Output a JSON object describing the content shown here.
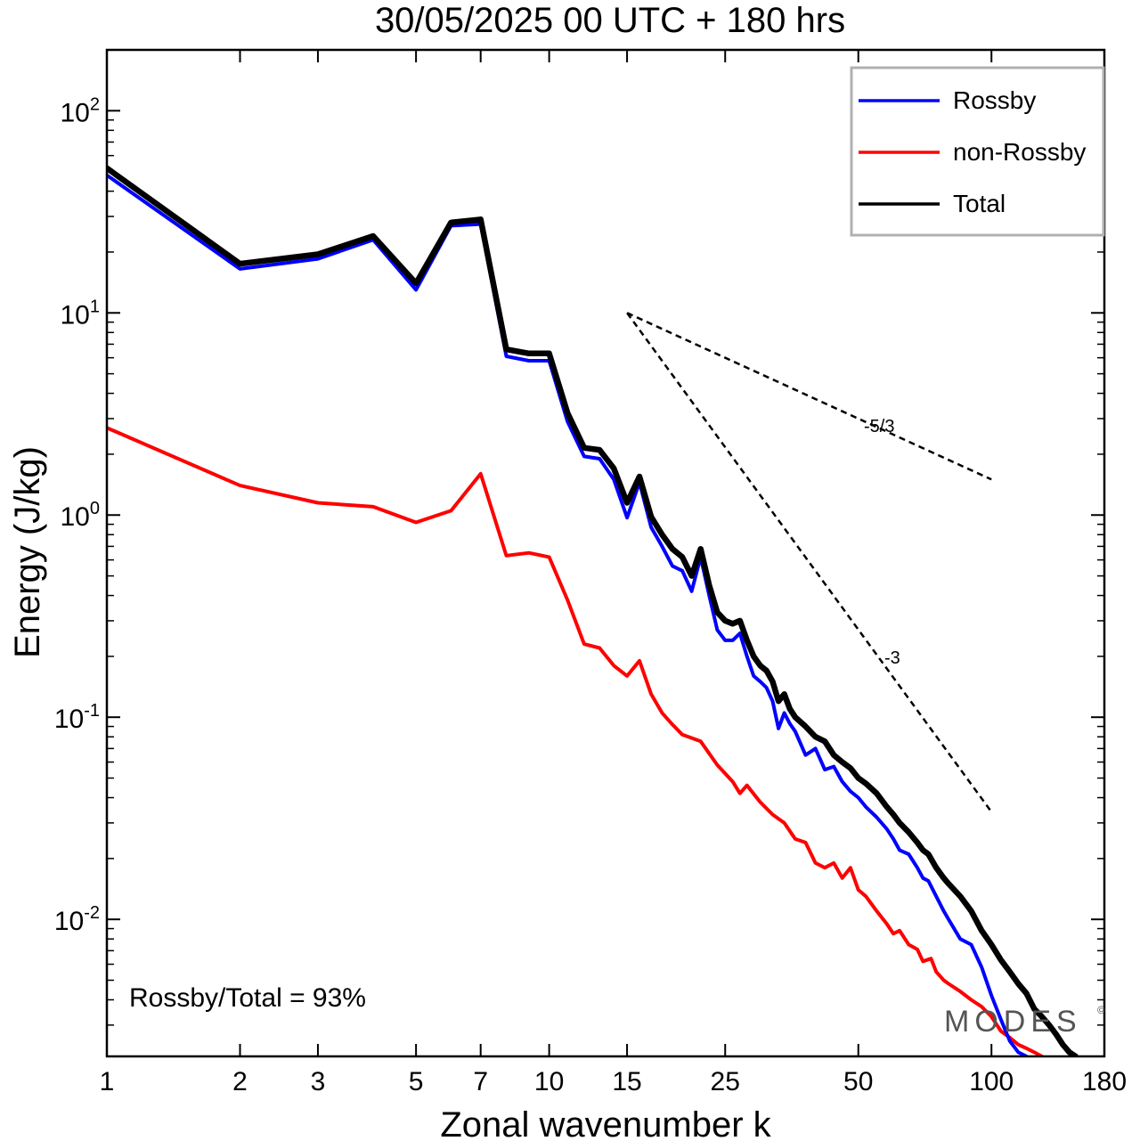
{
  "chart_data": {
    "type": "line",
    "title": "30/05/2025  00 UTC  + 180 hrs",
    "xlabel": "Zonal wavenumber k",
    "ylabel": "Energy (J/kg)",
    "x_scale": "log",
    "y_scale": "log",
    "xlim": [
      1,
      180
    ],
    "ylim": [
      0.0021,
      200
    ],
    "x_ticks": [
      {
        "value": 1,
        "label": "1"
      },
      {
        "value": 2,
        "label": "2"
      },
      {
        "value": 3,
        "label": "3"
      },
      {
        "value": 5,
        "label": "5"
      },
      {
        "value": 7,
        "label": "7"
      },
      {
        "value": 10,
        "label": "10"
      },
      {
        "value": 15,
        "label": "15"
      },
      {
        "value": 25,
        "label": "25"
      },
      {
        "value": 50,
        "label": "50"
      },
      {
        "value": 100,
        "label": "100"
      },
      {
        "value": 180,
        "label": "180"
      }
    ],
    "y_ticks": [
      {
        "value": 100,
        "base": "10",
        "exp": "2"
      },
      {
        "value": 10,
        "base": "10",
        "exp": "1"
      },
      {
        "value": 1,
        "base": "10",
        "exp": "0"
      },
      {
        "value": 0.1,
        "base": "10",
        "exp": "-1"
      },
      {
        "value": 0.01,
        "base": "10",
        "exp": "-2"
      }
    ],
    "legend_position": "top-right",
    "series": [
      {
        "name": "Rossby",
        "color": "#0000ff",
        "points": [
          [
            1,
            48
          ],
          [
            2,
            16.5
          ],
          [
            3,
            18.5
          ],
          [
            4,
            23
          ],
          [
            5,
            13
          ],
          [
            6,
            27
          ],
          [
            7,
            27.5
          ],
          [
            8,
            6.1
          ],
          [
            9,
            5.8
          ],
          [
            10,
            5.8
          ],
          [
            11,
            2.9
          ],
          [
            12,
            1.95
          ],
          [
            13,
            1.9
          ],
          [
            14,
            1.5
          ],
          [
            15,
            0.97
          ],
          [
            16,
            1.45
          ],
          [
            17,
            0.87
          ],
          [
            18,
            0.7
          ],
          [
            19,
            0.56
          ],
          [
            20,
            0.53
          ],
          [
            21,
            0.42
          ],
          [
            22,
            0.62
          ],
          [
            23,
            0.4
          ],
          [
            24,
            0.27
          ],
          [
            25,
            0.24
          ],
          [
            26,
            0.24
          ],
          [
            27,
            0.26
          ],
          [
            28,
            0.2
          ],
          [
            29,
            0.16
          ],
          [
            30,
            0.15
          ],
          [
            31,
            0.14
          ],
          [
            32,
            0.12
          ],
          [
            33,
            0.088
          ],
          [
            34,
            0.105
          ],
          [
            35,
            0.093
          ],
          [
            36,
            0.085
          ],
          [
            38,
            0.065
          ],
          [
            40,
            0.07
          ],
          [
            42,
            0.055
          ],
          [
            44,
            0.057
          ],
          [
            46,
            0.048
          ],
          [
            48,
            0.043
          ],
          [
            50,
            0.04
          ],
          [
            52,
            0.036
          ],
          [
            55,
            0.032
          ],
          [
            58,
            0.028
          ],
          [
            60,
            0.025
          ],
          [
            62,
            0.022
          ],
          [
            65,
            0.021
          ],
          [
            68,
            0.018
          ],
          [
            70,
            0.016
          ],
          [
            72,
            0.0155
          ],
          [
            75,
            0.013
          ],
          [
            78,
            0.011
          ],
          [
            80,
            0.01
          ],
          [
            85,
            0.008
          ],
          [
            90,
            0.0075
          ],
          [
            95,
            0.0058
          ],
          [
            100,
            0.0042
          ],
          [
            105,
            0.0032
          ],
          [
            110,
            0.0025
          ],
          [
            115,
            0.0022
          ],
          [
            120,
            0.0021
          ]
        ]
      },
      {
        "name": "non-Rossby",
        "color": "#ff0000",
        "points": [
          [
            1,
            2.7
          ],
          [
            2,
            1.4
          ],
          [
            3,
            1.15
          ],
          [
            4,
            1.1
          ],
          [
            5,
            0.92
          ],
          [
            6,
            1.05
          ],
          [
            7,
            1.6
          ],
          [
            8,
            0.63
          ],
          [
            9,
            0.65
          ],
          [
            10,
            0.62
          ],
          [
            11,
            0.38
          ],
          [
            12,
            0.23
          ],
          [
            13,
            0.22
          ],
          [
            14,
            0.18
          ],
          [
            15,
            0.16
          ],
          [
            16,
            0.19
          ],
          [
            17,
            0.13
          ],
          [
            18,
            0.105
          ],
          [
            19,
            0.092
          ],
          [
            20,
            0.082
          ],
          [
            22,
            0.076
          ],
          [
            24,
            0.058
          ],
          [
            26,
            0.048
          ],
          [
            27,
            0.042
          ],
          [
            28,
            0.046
          ],
          [
            30,
            0.038
          ],
          [
            32,
            0.033
          ],
          [
            34,
            0.03
          ],
          [
            36,
            0.025
          ],
          [
            38,
            0.024
          ],
          [
            40,
            0.019
          ],
          [
            42,
            0.018
          ],
          [
            44,
            0.019
          ],
          [
            46,
            0.016
          ],
          [
            48,
            0.018
          ],
          [
            50,
            0.014
          ],
          [
            52,
            0.013
          ],
          [
            55,
            0.011
          ],
          [
            58,
            0.0095
          ],
          [
            60,
            0.0085
          ],
          [
            62,
            0.0088
          ],
          [
            65,
            0.0075
          ],
          [
            68,
            0.0071
          ],
          [
            70,
            0.0062
          ],
          [
            73,
            0.0064
          ],
          [
            75,
            0.0055
          ],
          [
            78,
            0.005
          ],
          [
            80,
            0.0048
          ],
          [
            85,
            0.0044
          ],
          [
            90,
            0.004
          ],
          [
            95,
            0.0037
          ],
          [
            100,
            0.0033
          ],
          [
            105,
            0.0028
          ],
          [
            110,
            0.0026
          ],
          [
            115,
            0.0024
          ],
          [
            120,
            0.0023
          ],
          [
            125,
            0.0022
          ],
          [
            130,
            0.0021
          ]
        ]
      },
      {
        "name": "Total",
        "color": "#000000",
        "points": [
          [
            1,
            52
          ],
          [
            2,
            17.5
          ],
          [
            3,
            19.5
          ],
          [
            4,
            24
          ],
          [
            5,
            14
          ],
          [
            6,
            28
          ],
          [
            7,
            29
          ],
          [
            8,
            6.6
          ],
          [
            9,
            6.3
          ],
          [
            10,
            6.3
          ],
          [
            11,
            3.2
          ],
          [
            12,
            2.15
          ],
          [
            13,
            2.1
          ],
          [
            14,
            1.7
          ],
          [
            15,
            1.15
          ],
          [
            16,
            1.55
          ],
          [
            17,
            0.98
          ],
          [
            18,
            0.8
          ],
          [
            19,
            0.68
          ],
          [
            20,
            0.62
          ],
          [
            21,
            0.5
          ],
          [
            22,
            0.68
          ],
          [
            23,
            0.45
          ],
          [
            24,
            0.33
          ],
          [
            25,
            0.3
          ],
          [
            26,
            0.29
          ],
          [
            27,
            0.3
          ],
          [
            28,
            0.24
          ],
          [
            29,
            0.2
          ],
          [
            30,
            0.18
          ],
          [
            31,
            0.17
          ],
          [
            32,
            0.15
          ],
          [
            33,
            0.12
          ],
          [
            34,
            0.13
          ],
          [
            35,
            0.11
          ],
          [
            36,
            0.1
          ],
          [
            38,
            0.09
          ],
          [
            40,
            0.08
          ],
          [
            42,
            0.076
          ],
          [
            44,
            0.065
          ],
          [
            46,
            0.06
          ],
          [
            48,
            0.056
          ],
          [
            50,
            0.05
          ],
          [
            52,
            0.047
          ],
          [
            55,
            0.042
          ],
          [
            58,
            0.036
          ],
          [
            60,
            0.033
          ],
          [
            62,
            0.03
          ],
          [
            65,
            0.027
          ],
          [
            68,
            0.024
          ],
          [
            70,
            0.022
          ],
          [
            72,
            0.021
          ],
          [
            75,
            0.018
          ],
          [
            78,
            0.016
          ],
          [
            80,
            0.015
          ],
          [
            85,
            0.013
          ],
          [
            90,
            0.011
          ],
          [
            95,
            0.0088
          ],
          [
            100,
            0.0075
          ],
          [
            105,
            0.0063
          ],
          [
            110,
            0.0055
          ],
          [
            115,
            0.0048
          ],
          [
            120,
            0.0043
          ],
          [
            125,
            0.0036
          ],
          [
            130,
            0.0033
          ],
          [
            135,
            0.003
          ],
          [
            140,
            0.0027
          ],
          [
            145,
            0.0024
          ],
          [
            150,
            0.0022
          ],
          [
            155,
            0.0021
          ]
        ]
      }
    ],
    "reference_lines": [
      {
        "label": "-5/3",
        "start": [
          15,
          10
        ],
        "end": [
          100,
          1.5
        ]
      },
      {
        "label": "-3",
        "start": [
          15,
          10
        ],
        "end": [
          100,
          0.034
        ]
      }
    ],
    "annotations": {
      "ratio_text": "Rossby/Total = 93%",
      "watermark": "MODES",
      "watermark_mark": "©"
    }
  }
}
